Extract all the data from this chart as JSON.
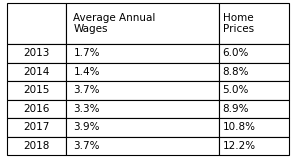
{
  "years": [
    "2013",
    "2014",
    "2015",
    "2016",
    "2017",
    "2018"
  ],
  "avg_annual_wages": [
    "1.7%",
    "1.4%",
    "3.7%",
    "3.3%",
    "3.9%",
    "3.7%"
  ],
  "home_prices": [
    "6.0%",
    "8.8%",
    "5.0%",
    "8.9%",
    "10.8%",
    "12.2%"
  ],
  "col_headers": [
    "Average Annual\nWages",
    "Home\nPrices"
  ],
  "background_color": "#ffffff",
  "border_color": "#000000",
  "font_size": 7.5,
  "fig_width": 2.96,
  "fig_height": 1.58,
  "dpi": 100
}
